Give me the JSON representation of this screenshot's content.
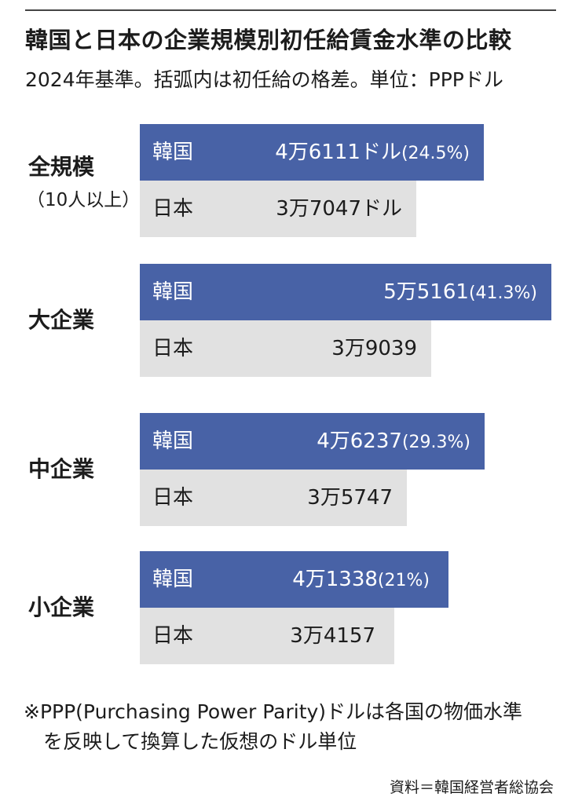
{
  "title": "韓国と日本の企業規模別初任給賃金水準の比較",
  "subtitle": "2024年基準。括弧内は初任給の格差。単位：PPPドル",
  "chart_data": {
    "type": "bar",
    "orientation": "horizontal",
    "title": "韓国と日本の企業規模別初任給賃金水準の比較",
    "subtitle": "2024年基準。括弧内は初任給の格差。単位：PPPドル",
    "categories": [
      {
        "label": "全規模",
        "sublabel": "（10人以上）"
      },
      {
        "label": "大企業",
        "sublabel": ""
      },
      {
        "label": "中企業",
        "sublabel": ""
      },
      {
        "label": "小企業",
        "sublabel": ""
      }
    ],
    "series": [
      {
        "name": "韓国",
        "color": "#4862a6",
        "text_color": "#ffffff",
        "values": [
          46111,
          55161,
          46237,
          41338
        ],
        "value_labels": [
          "4万6111ドル",
          "5万5161",
          "4万6237",
          "4万1338"
        ],
        "gap_labels": [
          "(24.5%)",
          "(41.3%)",
          "(29.3%)",
          "(21%)"
        ]
      },
      {
        "name": "日本",
        "color": "#e1e1e1",
        "text_color": "#1c1c1c",
        "values": [
          37047,
          39039,
          35747,
          34157
        ],
        "value_labels": [
          "3万7047ドル",
          "3万9039",
          "3万5747",
          "3万4157"
        ],
        "gap_labels": [
          "",
          "",
          "",
          ""
        ]
      }
    ],
    "xlim": [
      0,
      55161
    ],
    "grid": false,
    "legend": "none"
  },
  "note_lines": [
    "※PPP(Purchasing Power Parity)ドルは各国の物価水準",
    "　を反映して換算した仮想のドル単位"
  ],
  "source": "資料＝韓国経営者総協会"
}
